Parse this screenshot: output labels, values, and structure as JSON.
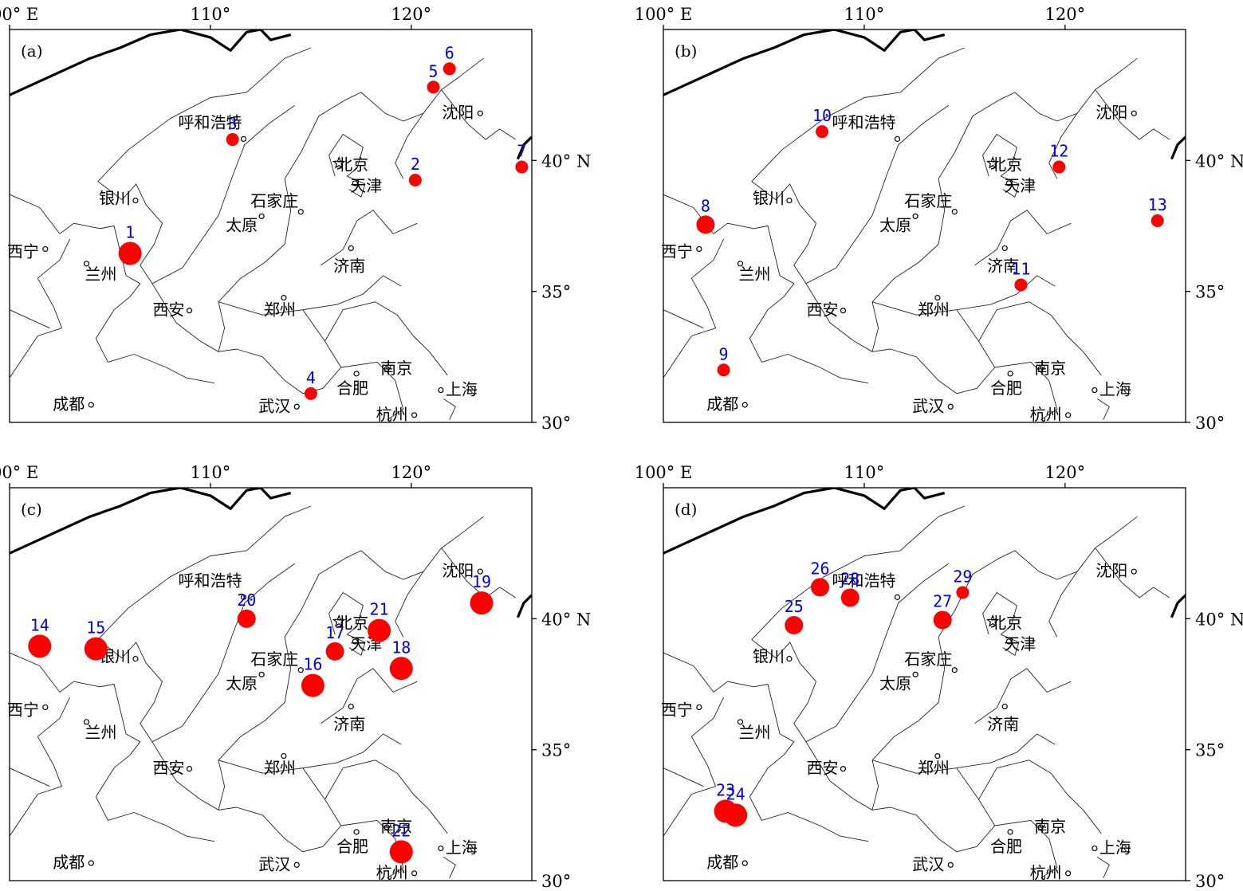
{
  "lon_labels": [
    "100° E",
    "110°",
    "120°"
  ],
  "lat_labels": [
    "40° N",
    "35°",
    "30°"
  ],
  "panels": [
    {
      "label": "(a)",
      "events": [
        {
          "id": "1",
          "lon": 106.0,
          "lat": 36.45,
          "size": "large"
        },
        {
          "id": "2",
          "lon": 120.2,
          "lat": 39.25,
          "size": "small"
        },
        {
          "id": "3",
          "lon": 111.1,
          "lat": 40.8,
          "size": "small"
        },
        {
          "id": "4",
          "lon": 115.0,
          "lat": 31.1,
          "size": "small"
        },
        {
          "id": "5",
          "lon": 121.1,
          "lat": 42.8,
          "size": "small"
        },
        {
          "id": "6",
          "lon": 121.9,
          "lat": 43.5,
          "size": "small"
        },
        {
          "id": "7",
          "lon": 125.5,
          "lat": 39.75,
          "size": "small"
        }
      ]
    },
    {
      "label": "(b)",
      "events": [
        {
          "id": "8",
          "lon": 102.1,
          "lat": 37.55,
          "size": "medium"
        },
        {
          "id": "9",
          "lon": 103.0,
          "lat": 32.0,
          "size": "small"
        },
        {
          "id": "10",
          "lon": 107.9,
          "lat": 41.1,
          "size": "small"
        },
        {
          "id": "11",
          "lon": 117.8,
          "lat": 35.25,
          "size": "small"
        },
        {
          "id": "12",
          "lon": 119.7,
          "lat": 39.75,
          "size": "small"
        },
        {
          "id": "13",
          "lon": 124.6,
          "lat": 37.7,
          "size": "small"
        }
      ]
    },
    {
      "label": "(c)",
      "events": [
        {
          "id": "14",
          "lon": 101.5,
          "lat": 38.95,
          "size": "large"
        },
        {
          "id": "15",
          "lon": 104.3,
          "lat": 38.85,
          "size": "large"
        },
        {
          "id": "16",
          "lon": 115.1,
          "lat": 37.45,
          "size": "large"
        },
        {
          "id": "17",
          "lon": 116.2,
          "lat": 38.75,
          "size": "medium"
        },
        {
          "id": "18",
          "lon": 119.5,
          "lat": 38.1,
          "size": "large"
        },
        {
          "id": "19",
          "lon": 123.5,
          "lat": 40.6,
          "size": "large"
        },
        {
          "id": "20",
          "lon": 111.8,
          "lat": 40.0,
          "size": "medium"
        },
        {
          "id": "21",
          "lon": 118.4,
          "lat": 39.55,
          "size": "large"
        },
        {
          "id": "22",
          "lon": 119.5,
          "lat": 31.1,
          "size": "large"
        }
      ]
    },
    {
      "label": "(d)",
      "events": [
        {
          "id": "23",
          "lon": 103.1,
          "lat": 32.65,
          "size": "large"
        },
        {
          "id": "24",
          "lon": 103.6,
          "lat": 32.5,
          "size": "large"
        },
        {
          "id": "25",
          "lon": 106.5,
          "lat": 39.75,
          "size": "medium"
        },
        {
          "id": "26",
          "lon": 107.8,
          "lat": 41.2,
          "size": "medium"
        },
        {
          "id": "27",
          "lon": 113.9,
          "lat": 39.95,
          "size": "medium"
        },
        {
          "id": "28",
          "lon": 109.3,
          "lat": 40.8,
          "size": "medium"
        },
        {
          "id": "29",
          "lon": 114.9,
          "lat": 41.0,
          "size": "small"
        }
      ]
    }
  ],
  "cities": [
    {
      "name": "呼和浩特",
      "lon": 111.65,
      "lat": 40.82
    },
    {
      "name": "北京",
      "lon": 116.4,
      "lat": 39.9,
      "capital": true
    },
    {
      "name": "天津",
      "lon": 117.2,
      "lat": 39.13
    },
    {
      "name": "石家庄",
      "lon": 114.5,
      "lat": 38.04
    },
    {
      "name": "太原",
      "lon": 112.55,
      "lat": 37.87
    },
    {
      "name": "银川",
      "lon": 106.27,
      "lat": 38.47
    },
    {
      "name": "兰州",
      "lon": 103.83,
      "lat": 36.06
    },
    {
      "name": "西宁",
      "lon": 101.78,
      "lat": 36.62
    },
    {
      "name": "西安",
      "lon": 108.95,
      "lat": 34.27
    },
    {
      "name": "郑州",
      "lon": 113.65,
      "lat": 34.76
    },
    {
      "name": "济南",
      "lon": 117.0,
      "lat": 36.65
    },
    {
      "name": "沈阳",
      "lon": 123.43,
      "lat": 41.8
    },
    {
      "name": "南京",
      "lon": 118.78,
      "lat": 32.04
    },
    {
      "name": "合肥",
      "lon": 117.27,
      "lat": 31.86
    },
    {
      "name": "上海",
      "lon": 121.47,
      "lat": 31.23
    },
    {
      "name": "杭州",
      "lon": 120.15,
      "lat": 30.28
    },
    {
      "name": "武汉",
      "lon": 114.3,
      "lat": 30.6
    },
    {
      "name": "成都",
      "lon": 104.06,
      "lat": 30.67
    }
  ]
}
